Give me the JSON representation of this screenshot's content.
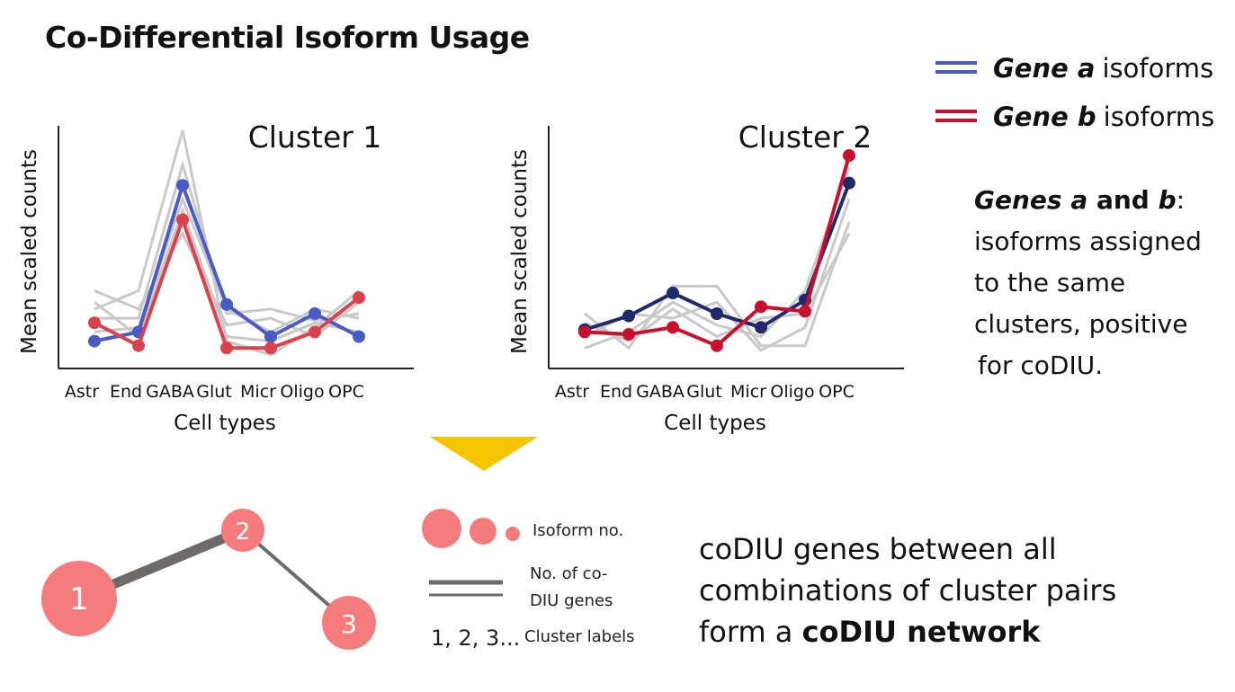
{
  "title": "Co-Differential Isoform Usage",
  "legend": [
    {
      "gene": "Gene a",
      "suffix": "isoforms",
      "color": "#4a5bc4"
    },
    {
      "gene": "Gene b",
      "suffix": "isoforms",
      "color": "#c8102e"
    }
  ],
  "note": {
    "line1_a": "Genes ",
    "line1_gene_a": "a",
    "line1_and": " and ",
    "line1_gene_b": "b",
    "line1_colon": ":",
    "line2": "isoforms assigned",
    "line3": "to the same",
    "line4": "clusters, positive",
    "line5": "for coDIU."
  },
  "chart_data": [
    {
      "type": "line",
      "title": "Cluster 1",
      "xlabel": "Cell types",
      "ylabel": "Mean scaled counts",
      "categories": [
        "Astr",
        "End",
        "GABA",
        "Glut",
        "Micr",
        "Oligo",
        "OPC"
      ],
      "ylim": [
        0,
        1
      ],
      "series": [
        {
          "values": [
            0.08,
            0.12,
            0.76,
            0.24,
            0.1,
            0.2,
            0.1
          ],
          "color": "#4a5bc4"
        },
        {
          "values": [
            0.16,
            0.06,
            0.61,
            0.05,
            0.05,
            0.12,
            0.27
          ],
          "color": "#d9434e"
        }
      ],
      "background_series": [
        [
          0.22,
          0.3,
          1.0,
          0.08,
          0.02,
          0.14,
          0.3
        ],
        [
          0.18,
          0.18,
          0.85,
          0.2,
          0.22,
          0.17,
          0.2
        ],
        [
          0.3,
          0.22,
          0.55,
          0.15,
          0.18,
          0.1,
          0.25
        ],
        [
          0.12,
          0.14,
          0.7,
          0.22,
          0.12,
          0.22,
          0.18
        ],
        [
          0.25,
          0.1,
          0.65,
          0.1,
          0.08,
          0.16,
          0.12
        ]
      ]
    },
    {
      "type": "line",
      "title": "Cluster 2",
      "xlabel": "Cell types",
      "ylabel": "Mean scaled counts",
      "categories": [
        "Astr",
        "End",
        "GABA",
        "Glut",
        "Micr",
        "Oligo",
        "OPC"
      ],
      "ylim": [
        0,
        1
      ],
      "series": [
        {
          "values": [
            0.13,
            0.19,
            0.29,
            0.2,
            0.14,
            0.26,
            0.77
          ],
          "color": "#1f2a6b"
        },
        {
          "values": [
            0.12,
            0.11,
            0.14,
            0.06,
            0.23,
            0.21,
            0.89
          ],
          "color": "#c8102e"
        }
      ],
      "background_series": [
        [
          0.2,
          0.05,
          0.32,
          0.32,
          0.06,
          0.06,
          0.6
        ],
        [
          0.05,
          0.12,
          0.25,
          0.15,
          0.1,
          0.3,
          0.84
        ],
        [
          0.1,
          0.2,
          0.18,
          0.25,
          0.04,
          0.14,
          0.7
        ],
        [
          0.16,
          0.08,
          0.22,
          0.1,
          0.18,
          0.2,
          0.55
        ]
      ]
    }
  ],
  "network": {
    "nodes": [
      {
        "label": "1"
      },
      {
        "label": "2"
      },
      {
        "label": "3"
      }
    ],
    "node_color": "#f47c7c",
    "edge_color": "#6e6a6a"
  },
  "key": {
    "isoform_label": "Isoform no.",
    "codiu_label_1": "No. of co-",
    "codiu_label_2": "DIU genes",
    "cluster_example": "1, 2, 3...",
    "cluster_label": "Cluster labels"
  },
  "caption": {
    "line1": "coDIU genes between all",
    "line2": "combinations of cluster pairs",
    "line3_a": "form a ",
    "line3_b": "coDIU network"
  },
  "arrow_color": "#f5c400"
}
